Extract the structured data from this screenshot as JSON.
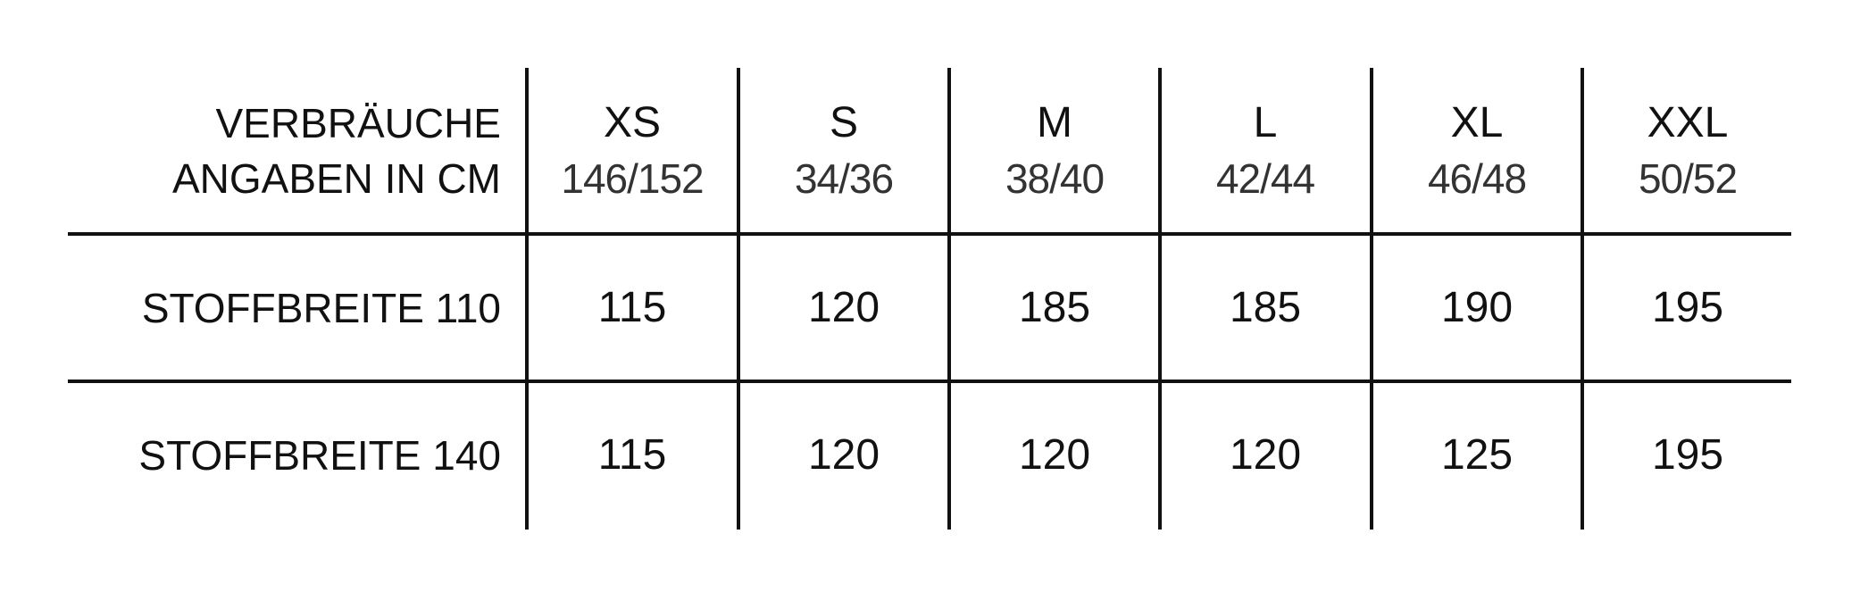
{
  "header": {
    "label_lines": [
      "VERBRÄUCHE",
      "ANGABEN IN CM"
    ],
    "sizes": [
      {
        "size": "XS",
        "range": "146/152"
      },
      {
        "size": "S",
        "range": "34/36"
      },
      {
        "size": "M",
        "range": "38/40"
      },
      {
        "size": "L",
        "range": "42/44"
      },
      {
        "size": "XL",
        "range": "46/48"
      },
      {
        "size": "XXL",
        "range": "50/52"
      }
    ]
  },
  "rows": [
    {
      "label": "STOFFBREITE 110",
      "values": [
        "115",
        "120",
        "185",
        "185",
        "190",
        "195"
      ]
    },
    {
      "label": "STOFFBREITE 140",
      "values": [
        "115",
        "120",
        "120",
        "120",
        "125",
        "195"
      ]
    }
  ]
}
